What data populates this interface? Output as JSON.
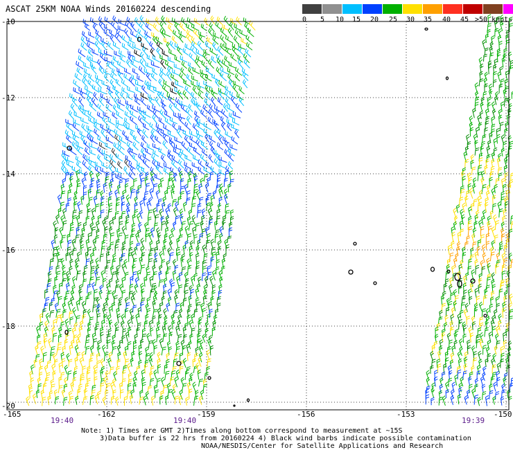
{
  "title": "ASCAT 25KM NOAA Winds 20160224 descending",
  "scale": {
    "colors": [
      "#404040",
      "#909090",
      "#00bfff",
      "#0040ff",
      "#00b000",
      "#ffe000",
      "#ffa000",
      "#ff3020",
      "#c00000",
      "#804020",
      "#ff00ff",
      "#c000c0",
      "#5a00a0"
    ],
    "labels": [
      "0",
      "5",
      "10",
      "15",
      "20",
      "25",
      "30",
      "35",
      "40",
      "45",
      ">50 knots"
    ]
  },
  "y_ticks": [
    "-10",
    "-12",
    "-14",
    "-16",
    "-18",
    "-20"
  ],
  "x_ticks": [
    "-165",
    "-162",
    "-159",
    "-156",
    "-153",
    "-150"
  ],
  "times": [
    "19:40",
    "19:40",
    "19:39"
  ],
  "notes": [
    "Note: 1) Times are GMT 2)Times along bottom correspond to measurement at ~15S",
    "3)Data buffer is 22 hrs from 20160224 4) Black wind barbs indicate possible contamination",
    "NOAA/NESDIS/Center for Satellite Applications and Research"
  ],
  "wind_colors": {
    "lt5": "#303030",
    "k10": "#00bfff",
    "k15": "#0040ff",
    "k20": "#00b000",
    "k25": "#ffe000",
    "k30": "#ffa000",
    "contaminated": "#000000"
  }
}
